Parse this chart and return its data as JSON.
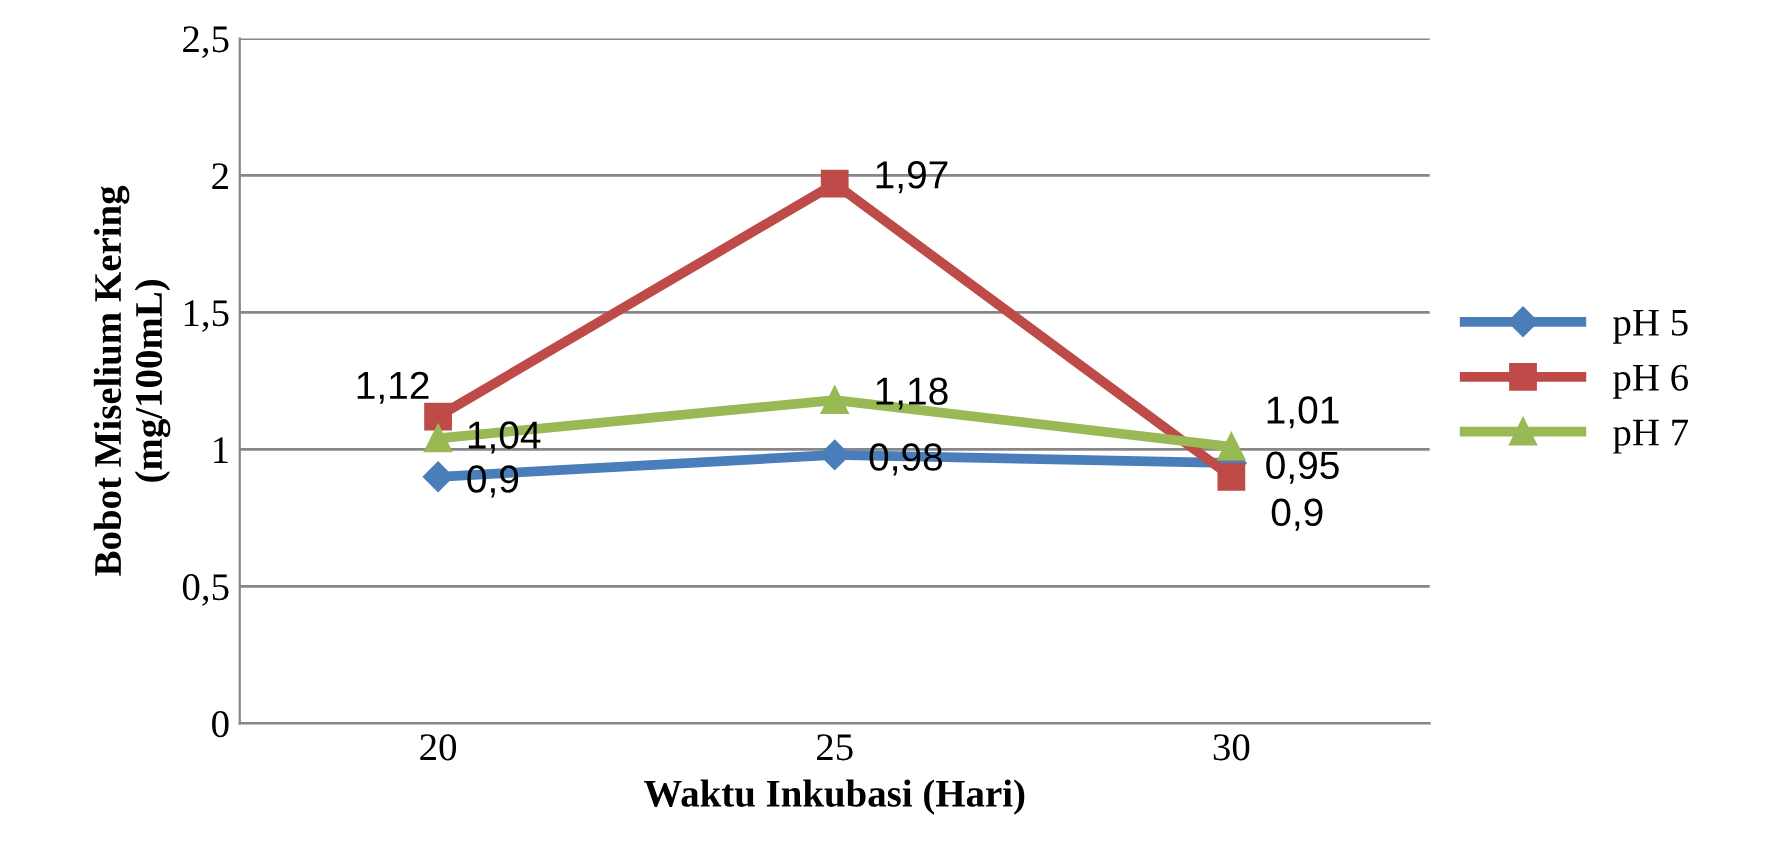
{
  "chart_data": {
    "type": "line",
    "xlabel": "Waktu Inkubasi (Hari)",
    "ylabel": "Bobot Miselium Kering\n(mg/100mL)",
    "categories": [
      "20",
      "25",
      "30"
    ],
    "series": [
      {
        "name": "pH 5",
        "color": "#4a7ebb",
        "marker": "diamond",
        "values": [
          0.9,
          0.98,
          0.95
        ],
        "value_labels": [
          "0,9",
          "0,98",
          "0,95"
        ]
      },
      {
        "name": "pH 6",
        "color": "#be4b48",
        "marker": "square",
        "values": [
          1.12,
          1.97,
          0.9
        ],
        "value_labels": [
          "1,12",
          "1,97",
          "0,9"
        ]
      },
      {
        "name": "pH 7",
        "color": "#98b954",
        "marker": "triangle",
        "values": [
          1.04,
          1.18,
          1.01
        ],
        "value_labels": [
          "1,04",
          "1,18",
          "1,01"
        ]
      }
    ],
    "ylim": [
      0,
      2.5
    ],
    "yticks": [
      0,
      {
        "value": 0.5,
        "label": "0,5"
      },
      1,
      {
        "value": 1.5,
        "label": "1,5"
      },
      2,
      {
        "value": 2.5,
        "label": "2,5"
      }
    ],
    "grid": "y",
    "legend": "right",
    "line_style": "solid"
  }
}
